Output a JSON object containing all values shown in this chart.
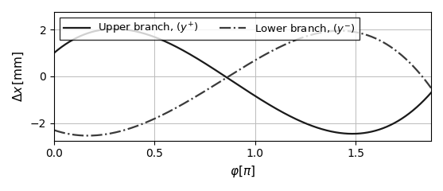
{
  "xlabel": "$\\varphi[\\pi]$",
  "ylabel": "$\\Delta x\\,[\\mathrm{mm}]$",
  "xlim": [
    0,
    1.875
  ],
  "ylim": [
    -2.75,
    2.75
  ],
  "yticks": [
    -2,
    0,
    2
  ],
  "xticks": [
    0,
    0.5,
    1.0,
    1.5
  ],
  "upper_amplitude": 2.15,
  "upper_phase": -0.52,
  "lower_amplitude": 2.25,
  "lower_phase": 2.62,
  "upper_color": "#1a1a1a",
  "lower_color": "#3a3a3a",
  "upper_label": "Upper branch, $(y^{+})$",
  "lower_label": "Lower branch, $(y^{-})$",
  "grid_color": "#bbbbbb",
  "background_color": "#ffffff",
  "figsize": [
    5.57,
    2.4
  ],
  "dpi": 100,
  "linewidth": 1.6,
  "n_points": 1000
}
